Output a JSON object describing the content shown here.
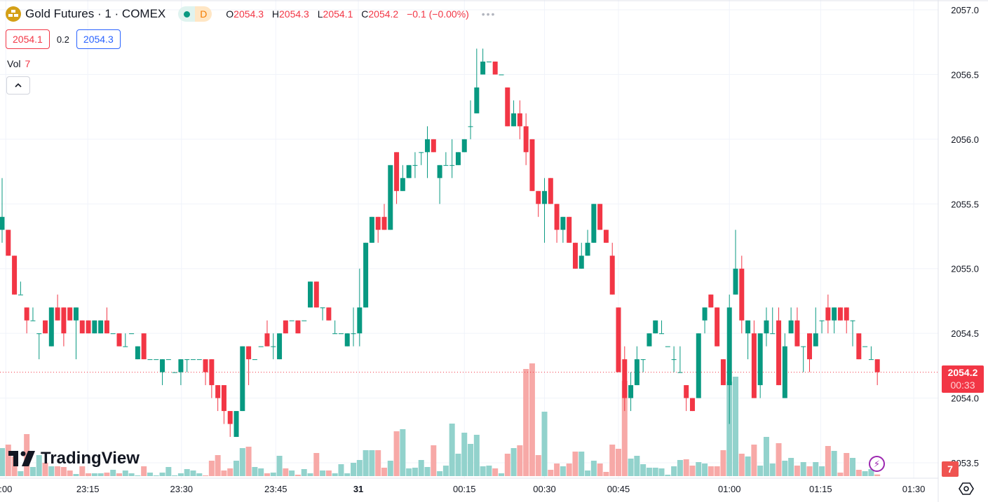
{
  "header": {
    "symbol_title": "Gold Futures · 1 · COMEX",
    "status_letter": "D",
    "ohlc": {
      "o_label": "O",
      "o": "2054.3",
      "h_label": "H",
      "h": "2054.3",
      "l_label": "L",
      "l": "2054.1",
      "c_label": "C",
      "c": "2054.2",
      "change": "−0.1 (−0.00%)"
    },
    "more_icon": "dots-icon"
  },
  "quote": {
    "bid": "2054.1",
    "spread": "0.2",
    "ask": "2054.3"
  },
  "volume_legend": {
    "label": "Vol",
    "value": "7"
  },
  "branding": {
    "logo_text": "TradingView"
  },
  "last_price": {
    "price": "2054.2",
    "countdown": "00:33",
    "volume": "7"
  },
  "colors": {
    "up": "#089981",
    "down": "#f23645",
    "vol_up": "#92d2cc",
    "vol_down": "#f7a9a7",
    "grid": "#f0f3fa"
  },
  "chart_data": {
    "type": "candlestick",
    "title": "Gold Futures · 1 · COMEX",
    "ylim": [
      2053.45,
      2057.05
    ],
    "y_ticks": [
      "2057.0",
      "2056.5",
      "2056.0",
      "2055.5",
      "2055.0",
      "2054.5",
      "2054.0",
      "2053.5"
    ],
    "x_ticks": [
      {
        "label": ":00",
        "bar": 0.6
      },
      {
        "label": "23:15",
        "bar": 13.9
      },
      {
        "label": "23:30",
        "bar": 29.1
      },
      {
        "label": "23:45",
        "bar": 44.4
      },
      {
        "label": "31",
        "bar": 57.8
      },
      {
        "label": "00:15",
        "bar": 75
      },
      {
        "label": "00:30",
        "bar": 88
      },
      {
        "label": "00:45",
        "bar": 100
      },
      {
        "label": "01:00",
        "bar": 118
      },
      {
        "label": "01:15",
        "bar": 132.8
      },
      {
        "label": "01:30",
        "bar": 147.9
      }
    ],
    "ohlc": [
      [
        2055.3,
        2055.7,
        2055.2,
        2055.4
      ],
      [
        2055.3,
        2055.3,
        2055.1,
        2055.1
      ],
      [
        2055.1,
        2055.1,
        2054.8,
        2054.8
      ],
      [
        2054.8,
        2054.9,
        2054.8,
        2054.8
      ],
      [
        2054.7,
        2054.7,
        2054.5,
        2054.6
      ],
      [
        2054.6,
        2054.7,
        2054.6,
        2054.6
      ],
      [
        2054.5,
        2054.5,
        2054.3,
        2054.5
      ],
      [
        2054.6,
        2054.6,
        2054.5,
        2054.5
      ],
      [
        2054.4,
        2054.7,
        2054.4,
        2054.7
      ],
      [
        2054.7,
        2054.8,
        2054.6,
        2054.6
      ],
      [
        2054.7,
        2054.7,
        2054.4,
        2054.5
      ],
      [
        2054.7,
        2054.7,
        2054.6,
        2054.6
      ],
      [
        2054.6,
        2054.7,
        2054.3,
        2054.7
      ],
      [
        2054.6,
        2054.6,
        2054.5,
        2054.5
      ],
      [
        2054.6,
        2054.6,
        2054.5,
        2054.5
      ],
      [
        2054.5,
        2054.6,
        2054.5,
        2054.6
      ],
      [
        2054.5,
        2054.6,
        2054.5,
        2054.6
      ],
      [
        2054.6,
        2054.7,
        2054.5,
        2054.5
      ],
      [
        2054.5,
        2054.5,
        2054.5,
        2054.5
      ],
      [
        2054.5,
        2054.5,
        2054.4,
        2054.4
      ],
      [
        2054.4,
        2054.5,
        2054.4,
        2054.4
      ],
      [
        2054.5,
        2054.5,
        2054.5,
        2054.5
      ],
      [
        2054.3,
        2054.4,
        2054.3,
        2054.4
      ],
      [
        2054.5,
        2054.5,
        2054.3,
        2054.3
      ],
      [
        2054.3,
        2054.3,
        2054.3,
        2054.3
      ],
      [
        2054.3,
        2054.3,
        2054.3,
        2054.3
      ],
      [
        2054.2,
        2054.3,
        2054.1,
        2054.3
      ],
      [
        2054.3,
        2054.3,
        2054.3,
        2054.3
      ],
      [
        2054.2,
        2054.2,
        2054.2,
        2054.2
      ],
      [
        2054.2,
        2054.3,
        2054.1,
        2054.3
      ],
      [
        2054.3,
        2054.3,
        2054.2,
        2054.3
      ],
      [
        2054.3,
        2054.3,
        2054.3,
        2054.3
      ],
      [
        2054.3,
        2054.3,
        2054.3,
        2054.3
      ],
      [
        2054.3,
        2054.3,
        2054.1,
        2054.2
      ],
      [
        2054.3,
        2054.3,
        2054.0,
        2054.1
      ],
      [
        2054.1,
        2054.1,
        2053.9,
        2054.0
      ],
      [
        2054.1,
        2054.1,
        2053.8,
        2053.9
      ],
      [
        2053.9,
        2053.9,
        2053.7,
        2053.8
      ],
      [
        2053.7,
        2053.9,
        2053.7,
        2053.9
      ],
      [
        2053.9,
        2054.4,
        2053.9,
        2054.4
      ],
      [
        2054.4,
        2054.4,
        2054.1,
        2054.3
      ],
      [
        2054.3,
        2054.3,
        2054.3,
        2054.3
      ],
      [
        2054.4,
        2054.4,
        2054.4,
        2054.4
      ],
      [
        2054.5,
        2054.6,
        2054.4,
        2054.4
      ],
      [
        2054.4,
        2054.5,
        2054.3,
        2054.4
      ],
      [
        2054.3,
        2054.5,
        2054.3,
        2054.5
      ],
      [
        2054.6,
        2054.6,
        2054.5,
        2054.5
      ],
      [
        2054.6,
        2054.6,
        2054.6,
        2054.6
      ],
      [
        2054.6,
        2054.6,
        2054.5,
        2054.5
      ],
      [
        2054.6,
        2054.6,
        2054.6,
        2054.6
      ],
      [
        2054.7,
        2054.9,
        2054.7,
        2054.9
      ],
      [
        2054.9,
        2054.9,
        2054.7,
        2054.7
      ],
      [
        2054.7,
        2054.7,
        2054.6,
        2054.7
      ],
      [
        2054.7,
        2054.7,
        2054.6,
        2054.6
      ],
      [
        2054.5,
        2054.6,
        2054.5,
        2054.5
      ],
      [
        2054.5,
        2054.5,
        2054.5,
        2054.5
      ],
      [
        2054.4,
        2054.5,
        2054.4,
        2054.5
      ],
      [
        2054.5,
        2054.7,
        2054.4,
        2054.5
      ],
      [
        2054.5,
        2055.0,
        2054.4,
        2054.7
      ],
      [
        2054.7,
        2055.2,
        2054.7,
        2055.2
      ],
      [
        2055.2,
        2055.4,
        2055.2,
        2055.4
      ],
      [
        2055.4,
        2055.4,
        2055.2,
        2055.3
      ],
      [
        2055.4,
        2055.5,
        2055.3,
        2055.3
      ],
      [
        2055.3,
        2055.8,
        2055.3,
        2055.8
      ],
      [
        2055.9,
        2055.9,
        2055.5,
        2055.6
      ],
      [
        2055.6,
        2055.8,
        2055.6,
        2055.7
      ],
      [
        2055.7,
        2055.8,
        2055.7,
        2055.8
      ],
      [
        2055.8,
        2055.9,
        2055.7,
        2055.8
      ],
      [
        2055.9,
        2055.9,
        2055.8,
        2055.9
      ],
      [
        2055.9,
        2056.1,
        2055.7,
        2056.0
      ],
      [
        2056.0,
        2056.0,
        2055.9,
        2055.9
      ],
      [
        2055.7,
        2055.8,
        2055.5,
        2055.8
      ],
      [
        2055.8,
        2055.9,
        2055.8,
        2055.8
      ],
      [
        2055.8,
        2056.0,
        2055.7,
        2055.8
      ],
      [
        2055.8,
        2055.9,
        2055.8,
        2055.9
      ],
      [
        2055.9,
        2056.0,
        2055.9,
        2056.0
      ],
      [
        2056.1,
        2056.3,
        2056.0,
        2056.1
      ],
      [
        2056.2,
        2056.7,
        2056.2,
        2056.4
      ],
      [
        2056.5,
        2056.7,
        2056.5,
        2056.6
      ],
      [
        2056.6,
        2056.6,
        2056.6,
        2056.6
      ],
      [
        2056.6,
        2056.6,
        2056.5,
        2056.5
      ],
      [
        2056.5,
        2056.5,
        2056.5,
        2056.5
      ],
      [
        2056.4,
        2056.4,
        2056.1,
        2056.1
      ],
      [
        2056.1,
        2056.3,
        2056.1,
        2056.2
      ],
      [
        2056.2,
        2056.3,
        2056.0,
        2056.1
      ],
      [
        2056.1,
        2056.2,
        2055.8,
        2055.9
      ],
      [
        2056.0,
        2056.0,
        2055.6,
        2055.6
      ],
      [
        2055.6,
        2055.6,
        2055.4,
        2055.5
      ],
      [
        2055.5,
        2055.7,
        2055.2,
        2055.6
      ],
      [
        2055.7,
        2055.7,
        2055.5,
        2055.5
      ],
      [
        2055.5,
        2055.5,
        2055.2,
        2055.3
      ],
      [
        2055.3,
        2055.4,
        2055.2,
        2055.4
      ],
      [
        2055.4,
        2055.4,
        2055.2,
        2055.2
      ],
      [
        2055.2,
        2055.2,
        2055.0,
        2055.0
      ],
      [
        2055.0,
        2055.2,
        2055.0,
        2055.1
      ],
      [
        2055.1,
        2055.3,
        2055.1,
        2055.2
      ],
      [
        2055.2,
        2055.5,
        2055.2,
        2055.5
      ],
      [
        2055.5,
        2055.5,
        2055.3,
        2055.3
      ],
      [
        2055.3,
        2055.3,
        2055.2,
        2055.2
      ],
      [
        2055.1,
        2055.2,
        2054.8,
        2054.8
      ],
      [
        2054.7,
        2054.7,
        2054.2,
        2054.2
      ],
      [
        2054.3,
        2054.4,
        2053.9,
        2054.0
      ],
      [
        2054.0,
        2054.2,
        2053.9,
        2054.1
      ],
      [
        2054.1,
        2054.4,
        2054.1,
        2054.3
      ],
      [
        2054.3,
        2054.3,
        2054.2,
        2054.3
      ],
      [
        2054.4,
        2054.5,
        2054.4,
        2054.5
      ],
      [
        2054.5,
        2054.6,
        2054.5,
        2054.6
      ],
      [
        2054.5,
        2054.6,
        2054.5,
        2054.5
      ],
      [
        2054.4,
        2054.4,
        2054.4,
        2054.4
      ],
      [
        2054.3,
        2054.4,
        2054.2,
        2054.3
      ],
      [
        2054.2,
        2054.4,
        2054.2,
        2054.2
      ],
      [
        2054.1,
        2054.1,
        2053.9,
        2054.0
      ],
      [
        2054.0,
        2054.0,
        2053.9,
        2053.9
      ],
      [
        2054.0,
        2054.5,
        2054.0,
        2054.5
      ],
      [
        2054.6,
        2054.7,
        2054.5,
        2054.7
      ],
      [
        2054.8,
        2054.8,
        2054.7,
        2054.7
      ],
      [
        2054.7,
        2054.7,
        2054.4,
        2054.4
      ],
      [
        2054.3,
        2054.3,
        2054.1,
        2054.1
      ],
      [
        2054.1,
        2054.8,
        2053.8,
        2054.7
      ],
      [
        2054.8,
        2055.3,
        2054.8,
        2055.0
      ],
      [
        2055.0,
        2055.1,
        2054.5,
        2054.6
      ],
      [
        2054.5,
        2054.6,
        2054.3,
        2054.6
      ],
      [
        2054.5,
        2054.6,
        2054.0,
        2054.0
      ],
      [
        2054.1,
        2054.5,
        2054.0,
        2054.5
      ],
      [
        2054.5,
        2054.7,
        2054.4,
        2054.6
      ],
      [
        2054.5,
        2054.7,
        2054.5,
        2054.5
      ],
      [
        2054.6,
        2054.7,
        2054.1,
        2054.1
      ],
      [
        2054.0,
        2054.5,
        2054.0,
        2054.4
      ],
      [
        2054.5,
        2054.7,
        2054.5,
        2054.6
      ],
      [
        2054.6,
        2054.7,
        2054.4,
        2054.4
      ],
      [
        2054.4,
        2054.4,
        2054.2,
        2054.4
      ],
      [
        2054.5,
        2054.5,
        2054.2,
        2054.3
      ],
      [
        2054.4,
        2054.7,
        2054.4,
        2054.5
      ],
      [
        2054.6,
        2054.6,
        2054.5,
        2054.6
      ],
      [
        2054.7,
        2054.8,
        2054.5,
        2054.6
      ],
      [
        2054.6,
        2054.7,
        2054.5,
        2054.7
      ],
      [
        2054.7,
        2054.7,
        2054.6,
        2054.6
      ],
      [
        2054.7,
        2054.7,
        2054.5,
        2054.6
      ],
      [
        2054.6,
        2054.6,
        2054.4,
        2054.6
      ],
      [
        2054.5,
        2054.5,
        2054.3,
        2054.3
      ],
      [
        2054.4,
        2054.4,
        2054.4,
        2054.4
      ],
      [
        2054.3,
        2054.4,
        2054.3,
        2054.3
      ],
      [
        2054.3,
        2054.3,
        2054.1,
        2054.2
      ]
    ],
    "volume": [
      120,
      135,
      84,
      21,
      180,
      39,
      90,
      57,
      42,
      42,
      39,
      24,
      9,
      42,
      12,
      12,
      12,
      15,
      27,
      12,
      24,
      12,
      3,
      42,
      15,
      3,
      15,
      39,
      3,
      12,
      30,
      24,
      12,
      3,
      66,
      90,
      24,
      33,
      66,
      120,
      126,
      39,
      33,
      12,
      15,
      87,
      33,
      24,
      6,
      30,
      12,
      99,
      24,
      24,
      12,
      51,
      12,
      57,
      69,
      111,
      111,
      111,
      36,
      66,
      192,
      201,
      33,
      36,
      69,
      39,
      132,
      21,
      45,
      225,
      96,
      186,
      138,
      177,
      42,
      45,
      33,
      12,
      96,
      120,
      132,
      459,
      483,
      90,
      276,
      27,
      54,
      42,
      54,
      105,
      105,
      24,
      66,
      54,
      18,
      135,
      117,
      408,
      75,
      87,
      51,
      36,
      36,
      33,
      6,
      42,
      69,
      72,
      45,
      60,
      54,
      42,
      42,
      111,
      405,
      426,
      96,
      84,
      135,
      45,
      168,
      54,
      141,
      66,
      78,
      45,
      60,
      42,
      60,
      42,
      129,
      108,
      15,
      99,
      78,
      27,
      21,
      30,
      7
    ],
    "volume_max_axis": 483,
    "last_price": 2054.2
  }
}
